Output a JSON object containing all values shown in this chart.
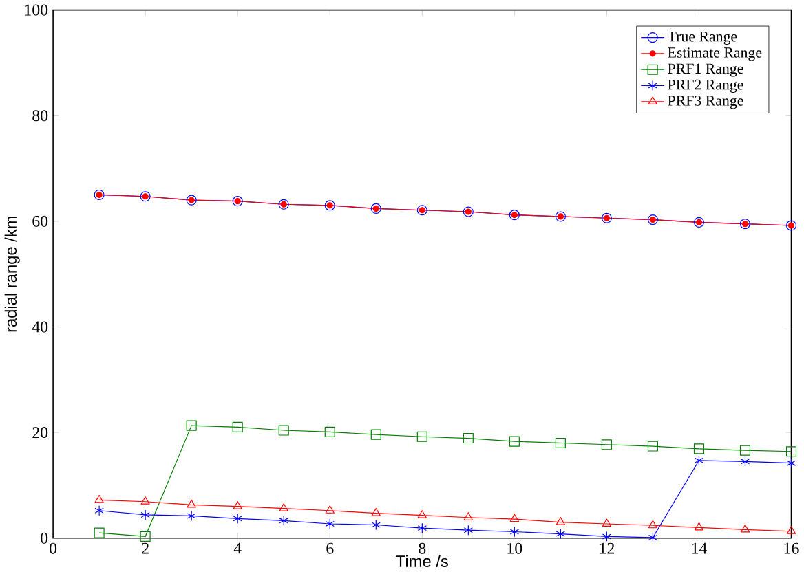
{
  "chart_data": {
    "type": "line",
    "xlabel": "Time /s",
    "ylabel": "radial range /km",
    "x": [
      1,
      2,
      3,
      4,
      5,
      6,
      7,
      8,
      9,
      10,
      11,
      12,
      13,
      14,
      15,
      16
    ],
    "series": [
      {
        "name": "True Range",
        "color": "#0000ff",
        "marker": "circle",
        "values": [
          65,
          64.7,
          64.0,
          63.8,
          63.2,
          63.0,
          62.4,
          62.1,
          61.8,
          61.2,
          60.9,
          60.6,
          60.3,
          59.8,
          59.5,
          59.2
        ]
      },
      {
        "name": "Estimate Range",
        "color": "#ff0000",
        "marker": "dot",
        "values": [
          65,
          64.7,
          64.0,
          63.8,
          63.2,
          63.0,
          62.4,
          62.1,
          61.8,
          61.2,
          60.9,
          60.6,
          60.3,
          59.8,
          59.5,
          59.2
        ]
      },
      {
        "name": "PRF1 Range",
        "color": "#008000",
        "marker": "square",
        "values": [
          1.0,
          0.3,
          21.3,
          21.0,
          20.4,
          20.1,
          19.6,
          19.2,
          18.9,
          18.3,
          18.0,
          17.7,
          17.4,
          16.9,
          16.6,
          16.4
        ]
      },
      {
        "name": "PRF2 Range",
        "color": "#0000ff",
        "marker": "cross",
        "values": [
          5.2,
          4.4,
          4.2,
          3.7,
          3.3,
          2.7,
          2.5,
          1.9,
          1.5,
          1.2,
          0.8,
          0.3,
          0.1,
          14.7,
          14.5,
          14.2
        ]
      },
      {
        "name": "PRF3 Range",
        "color": "#ff0000",
        "marker": "triangle",
        "values": [
          7.2,
          6.9,
          6.3,
          6.0,
          5.6,
          5.2,
          4.7,
          4.3,
          3.9,
          3.6,
          3.0,
          2.7,
          2.4,
          2.0,
          1.6,
          1.3
        ]
      }
    ],
    "xlim": [
      0,
      16
    ],
    "ylim": [
      0,
      100
    ],
    "xticks": [
      0,
      2,
      4,
      6,
      8,
      10,
      12,
      14,
      16
    ],
    "yticks": [
      0,
      20,
      40,
      60,
      80,
      100
    ],
    "grid": false,
    "legend": "top right",
    "line_style": "solid"
  }
}
